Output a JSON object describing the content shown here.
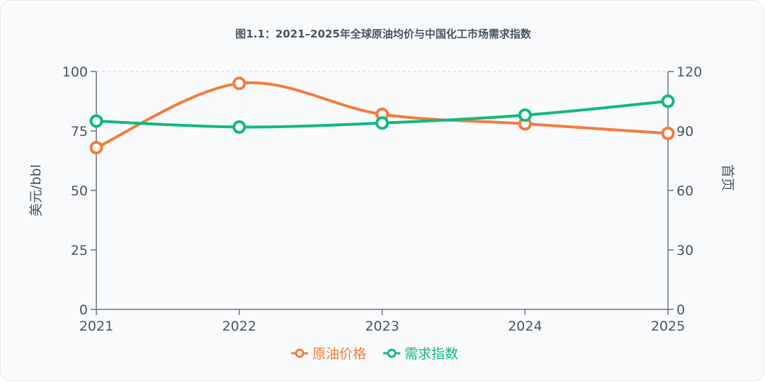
{
  "chart_data": {
    "type": "line",
    "title": "图1.1：2021–2025年全球原油均价与中国化工市场需求指数",
    "x": [
      "2021",
      "2022",
      "2023",
      "2024",
      "2025"
    ],
    "ylabel_left": "美元/bbl",
    "ylabel_right": "首页",
    "ylim_left": [
      0,
      100
    ],
    "ylim_right": [
      0,
      120
    ],
    "yticks_left": [
      0,
      25,
      50,
      75,
      100
    ],
    "yticks_right": [
      0,
      30,
      60,
      90,
      120
    ],
    "legend_position": "bottom-center",
    "grid": "top dashed line only",
    "series": [
      {
        "name": "原油价格",
        "axis": "left",
        "color": "#f47c3c",
        "values": [
          68,
          95,
          82,
          78,
          74
        ]
      },
      {
        "name": "需求指数",
        "axis": "right",
        "color": "#10b981",
        "values": [
          95,
          92,
          94,
          98,
          105
        ]
      }
    ]
  }
}
